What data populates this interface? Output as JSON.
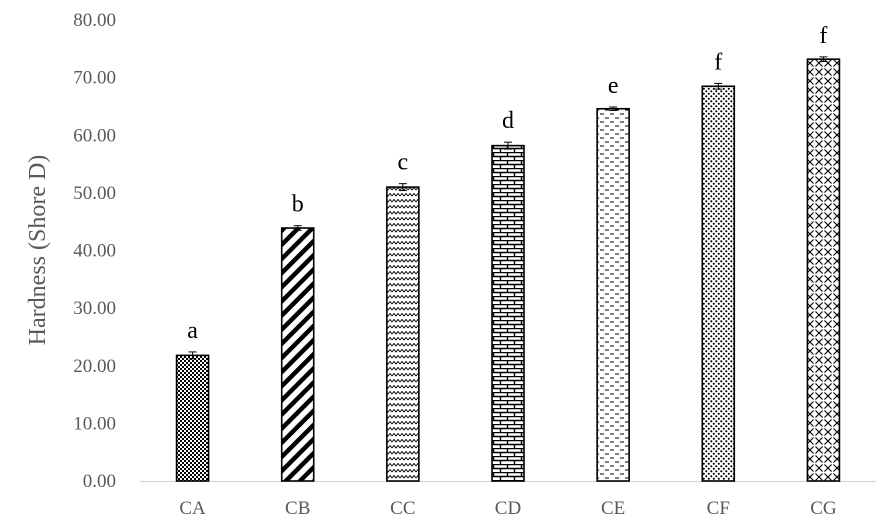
{
  "chart_data": {
    "type": "bar",
    "title": "",
    "xlabel": "",
    "ylabel": "Hardness (Shore D)",
    "ylim": [
      0,
      80
    ],
    "yticks": [
      "0.00",
      "10.00",
      "20.00",
      "30.00",
      "40.00",
      "50.00",
      "60.00",
      "70.00",
      "80.00"
    ],
    "grid": false,
    "categories": [
      "CA",
      "CB",
      "CC",
      "CD",
      "CE",
      "CF",
      "CG"
    ],
    "values": [
      21.8,
      43.9,
      51.0,
      58.2,
      64.6,
      68.5,
      73.2
    ],
    "errors": [
      0.6,
      0.4,
      0.6,
      0.6,
      0.3,
      0.5,
      0.4
    ],
    "significance_labels": [
      "a",
      "b",
      "c",
      "d",
      "e",
      "f",
      "f"
    ],
    "patterns": [
      "checker",
      "diagonal-stripes",
      "zigzag",
      "brick",
      "dashed-horizontal",
      "dots",
      "lattice"
    ],
    "colors": {
      "bar_outline": "#000000",
      "pattern": "#000000",
      "axis": "#d9d9d9",
      "text": "#595959"
    }
  }
}
